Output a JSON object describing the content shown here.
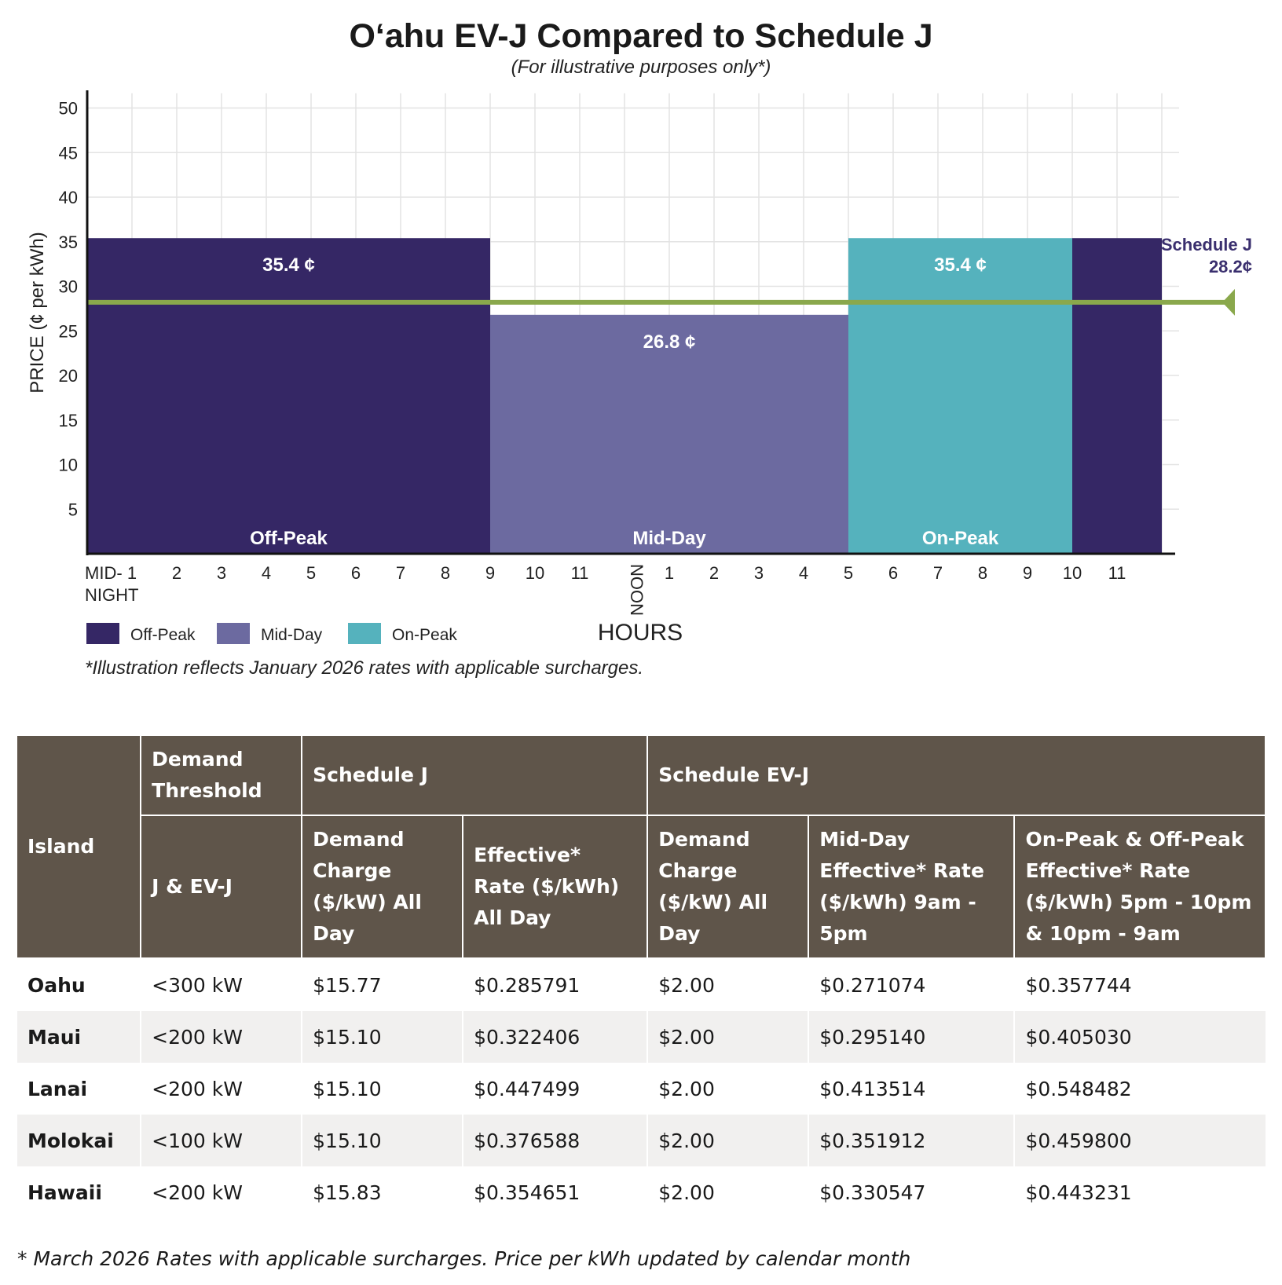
{
  "chart_data": {
    "type": "bar",
    "title": "O‘ahu EV-J Compared to Schedule J",
    "subtitle": "(For illustrative purposes only*)",
    "ylabel": "PRICE (¢ per kWh)",
    "xlabel": "HOURS",
    "ylim": [
      0,
      52
    ],
    "yticks": [
      "5",
      "10",
      "15",
      "20",
      "25",
      "30",
      "35",
      "40",
      "45",
      "50"
    ],
    "x_tick_labels": [
      "MID-NIGHT",
      "1",
      "2",
      "3",
      "4",
      "5",
      "6",
      "7",
      "8",
      "9",
      "10",
      "11",
      "NOON",
      "1",
      "2",
      "3",
      "4",
      "5",
      "6",
      "7",
      "8",
      "9",
      "10",
      "11"
    ],
    "midnight_label": [
      "MID-",
      "NIGHT"
    ],
    "periods": [
      {
        "name": "Off-Peak",
        "start_hour": 0,
        "end_hour": 9,
        "value": 35.4,
        "value_label": "35.4 ¢",
        "period_label": "Off-Peak",
        "color": "#352765"
      },
      {
        "name": "Mid-Day",
        "start_hour": 9,
        "end_hour": 17,
        "value": 26.8,
        "value_label": "26.8 ¢",
        "period_label": "Mid-Day",
        "color": "#6c6aa0"
      },
      {
        "name": "On-Peak",
        "start_hour": 17,
        "end_hour": 22,
        "value": 35.4,
        "value_label": "35.4 ¢",
        "period_label": "On-Peak",
        "color": "#55b2bd"
      },
      {
        "name": "Off-Peak",
        "start_hour": 22,
        "end_hour": 24,
        "value": 35.4,
        "value_label": "",
        "period_label": "",
        "color": "#352765"
      }
    ],
    "reference_line": {
      "name": "Schedule J",
      "value": 28.2,
      "label_line1": "Schedule J",
      "label_line2": "28.2¢",
      "color": "#8aa84c"
    },
    "legend": [
      {
        "label": "Off-Peak",
        "color": "#352765"
      },
      {
        "label": "Mid-Day",
        "color": "#6c6aa0"
      },
      {
        "label": "On-Peak",
        "color": "#55b2bd"
      }
    ],
    "note": "*Illustration reflects January 2026 rates with applicable surcharges."
  },
  "table": {
    "header": {
      "island": "Island",
      "demand_threshold": "Demand Threshold",
      "schedule_j": "Schedule J",
      "schedule_evj": "Schedule EV-J",
      "j_evj": "J & EV-J",
      "j_demand_charge": "Demand Charge ($/kW) All Day",
      "j_effective_rate": "Effective* Rate ($/kWh) All Day",
      "evj_demand_charge": "Demand Charge ($/kW) All Day",
      "evj_midday_rate": "Mid-Day Effective* Rate ($/kWh) 9am - 5pm",
      "evj_onoff_rate": "On-Peak & Off-Peak Effective* Rate ($/kWh) 5pm - 10pm & 10pm - 9am"
    },
    "rows": [
      [
        "Oahu",
        "<300 kW",
        "$15.77",
        "$0.285791",
        "$2.00",
        "$0.271074",
        "$0.357744"
      ],
      [
        "Maui",
        "<200 kW",
        "$15.10",
        "$0.322406",
        "$2.00",
        "$0.295140",
        "$0.405030"
      ],
      [
        "Lanai",
        "<200 kW",
        "$15.10",
        "$0.447499",
        "$2.00",
        "$0.413514",
        "$0.548482"
      ],
      [
        "Molokai",
        "<100 kW",
        "$15.10",
        "$0.376588",
        "$2.00",
        "$0.351912",
        "$0.459800"
      ],
      [
        "Hawaii",
        "<200 kW",
        "$15.83",
        "$0.354651",
        "$2.00",
        "$0.330547",
        "$0.443231"
      ]
    ]
  },
  "footnote": "* March 2026 Rates with applicable surcharges. Price per kWh updated by calendar month"
}
